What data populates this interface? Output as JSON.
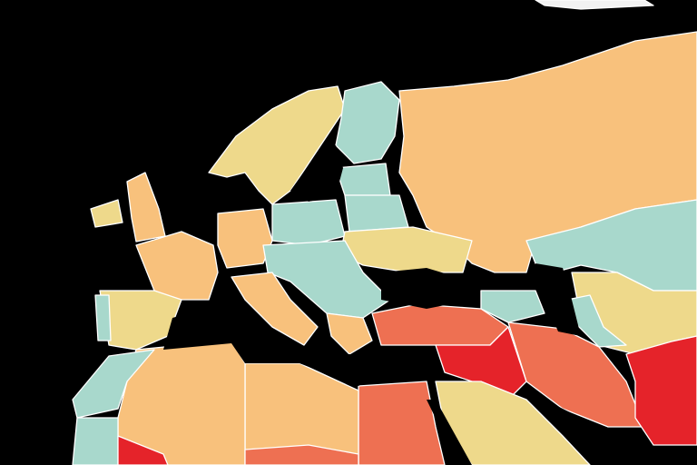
{
  "map": {
    "background": "#000000",
    "border_color": "#ffffff",
    "palette": {
      "peach": "#f8c17c",
      "teal": "#a8d8cc",
      "yellow": "#eed98b",
      "orange": "#ee7052",
      "red": "#e5232a",
      "ice": "#f2f2f2",
      "water": "#000000"
    }
  }
}
